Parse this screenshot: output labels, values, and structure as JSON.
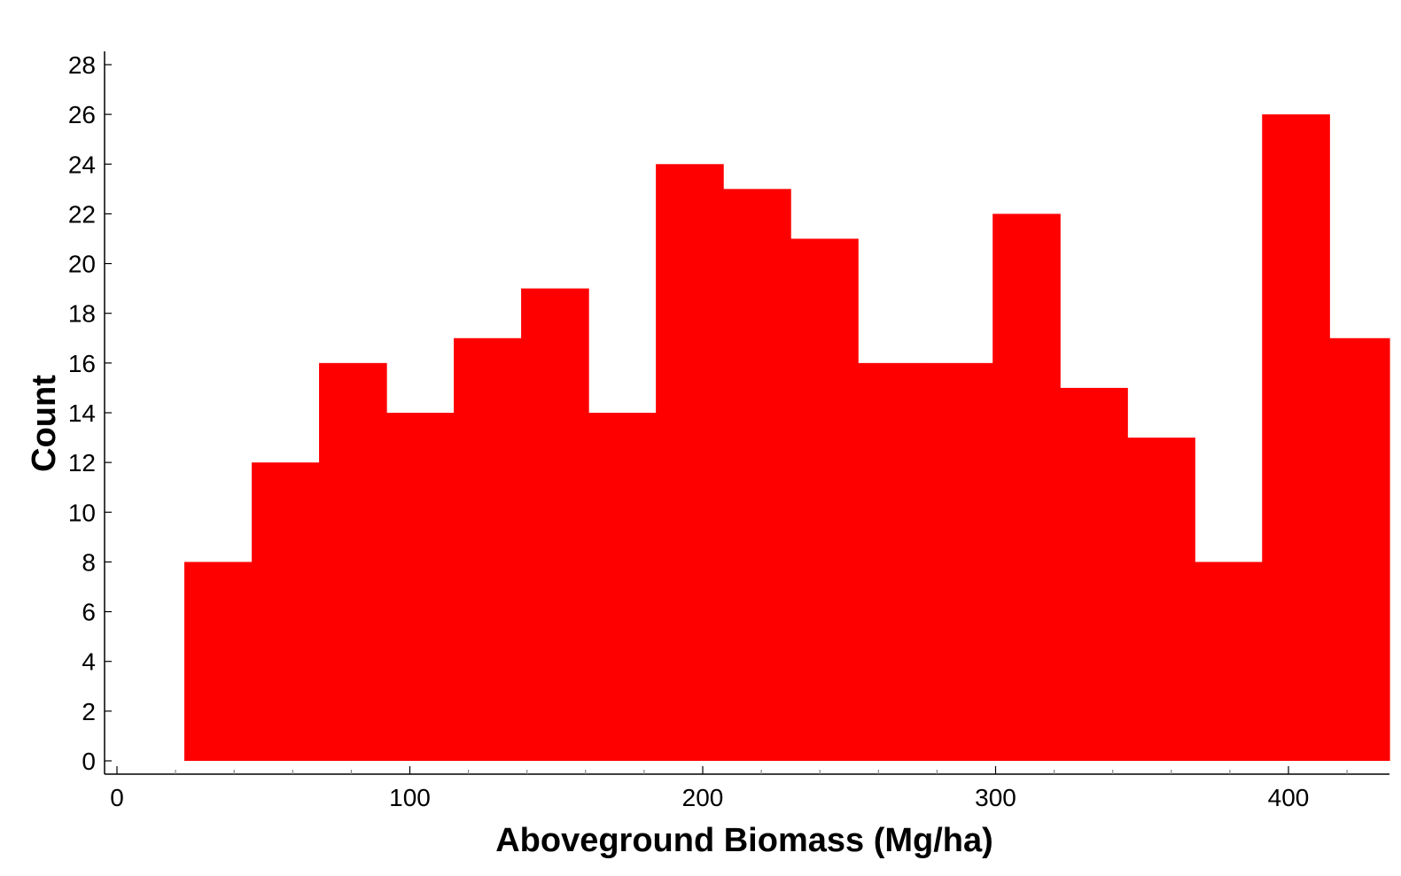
{
  "chart_data": {
    "type": "bar",
    "bin_edges": [
      23,
      46,
      69,
      92,
      115,
      138,
      161,
      184,
      207,
      230,
      253,
      276,
      299,
      322,
      345,
      368,
      391,
      414,
      437
    ],
    "values": [
      8,
      12,
      16,
      14,
      17,
      19,
      14,
      24,
      23,
      21,
      16,
      16,
      22,
      15,
      13,
      8,
      26,
      17
    ],
    "xlabel": "Aboveground Biomass (Mg/ha)",
    "ylabel": "Count",
    "xlim": [
      -4,
      437
    ],
    "ylim": [
      0,
      28
    ],
    "x_ticks": [
      0,
      100,
      200,
      300,
      400
    ],
    "y_ticks": [
      0,
      2,
      4,
      6,
      8,
      10,
      12,
      14,
      16,
      18,
      20,
      22,
      24,
      26,
      28
    ],
    "bar_color": "#ff0000",
    "grid": false,
    "legend": "none"
  }
}
